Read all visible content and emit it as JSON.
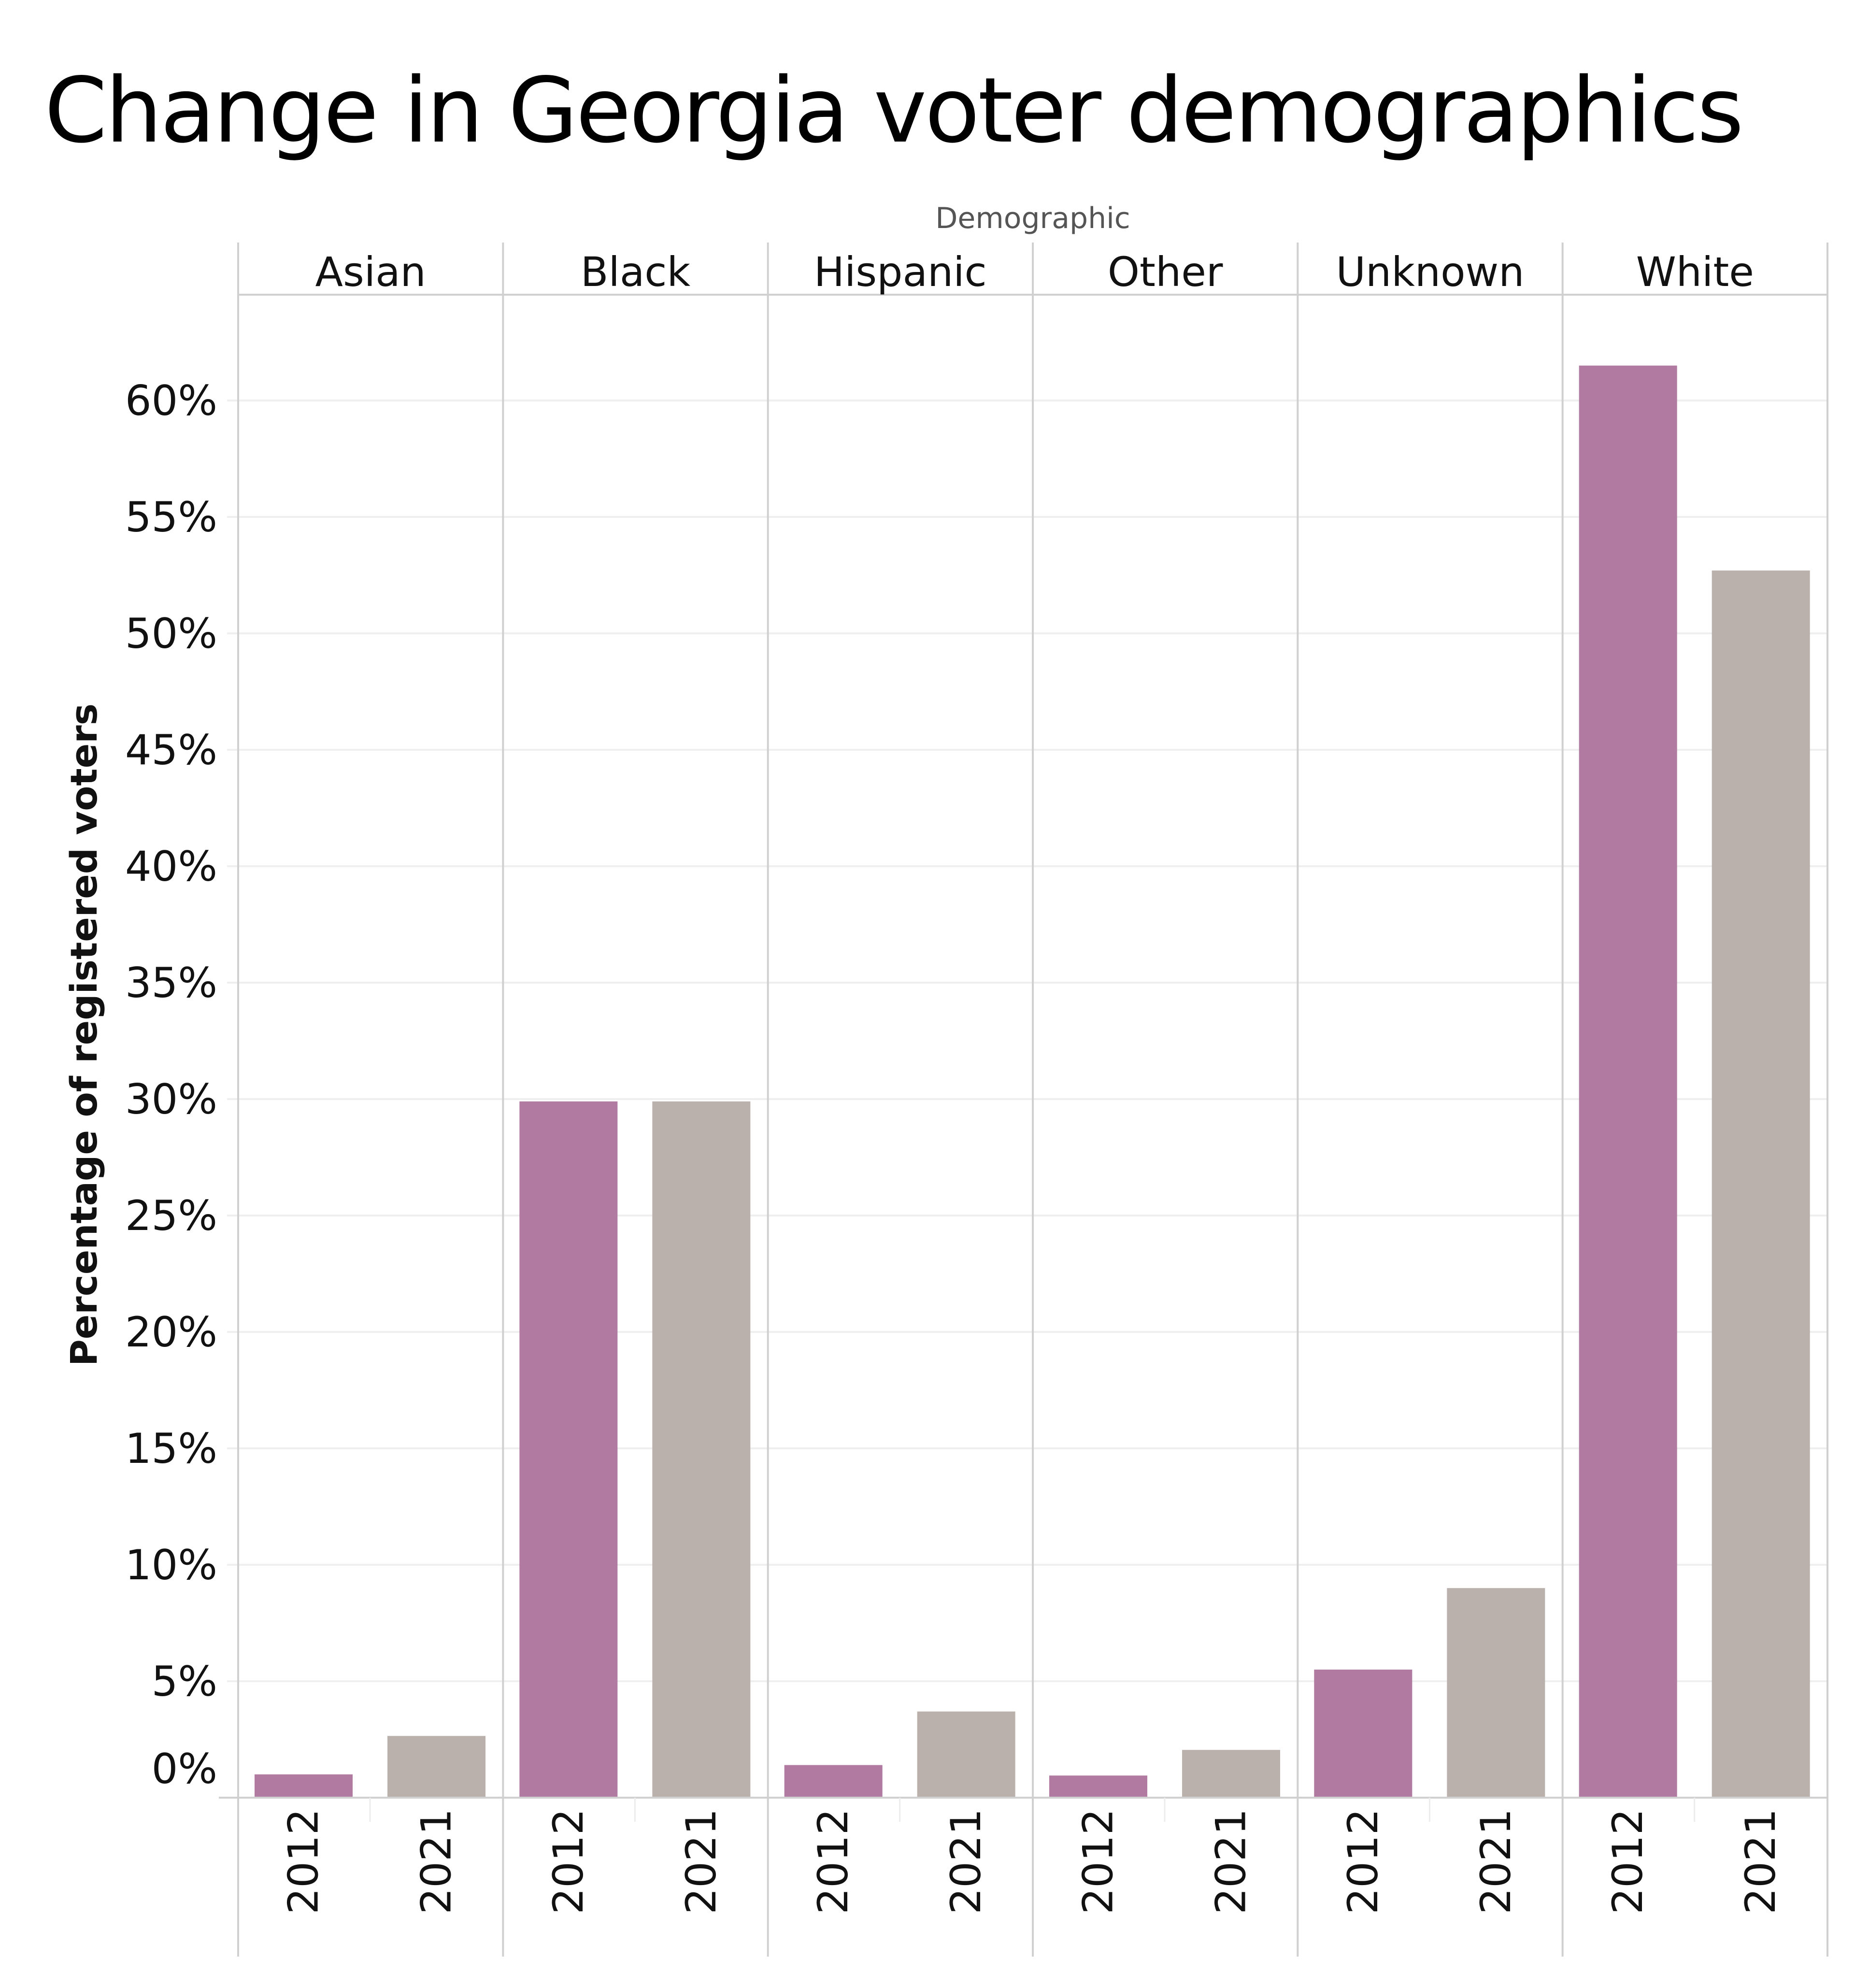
{
  "chart_data": {
    "type": "bar",
    "title": "Change in Georgia voter demographics",
    "facet_title": "Demographic",
    "xlabel": "",
    "ylabel": "Percentage of registered voters",
    "ylim": [
      0,
      63
    ],
    "yticks": [
      0,
      5,
      10,
      15,
      20,
      25,
      30,
      35,
      40,
      45,
      50,
      55,
      60
    ],
    "ytick_labels": [
      "0%",
      "5%",
      "10%",
      "15%",
      "20%",
      "25%",
      "30%",
      "35%",
      "40%",
      "45%",
      "50%",
      "55%",
      "60%"
    ],
    "grid": true,
    "legend": "none",
    "categories": [
      "Asian",
      "Black",
      "Hispanic",
      "Other",
      "Unknown",
      "White"
    ],
    "years": [
      "2012",
      "2021"
    ],
    "series": [
      {
        "name": "2012",
        "color": "#B07AA1",
        "values": [
          1.0,
          29.9,
          1.4,
          0.95,
          5.5,
          61.5
        ]
      },
      {
        "name": "2021",
        "color": "#BAB0AC",
        "values": [
          2.65,
          29.9,
          3.7,
          2.05,
          9.0,
          52.7
        ]
      }
    ]
  }
}
